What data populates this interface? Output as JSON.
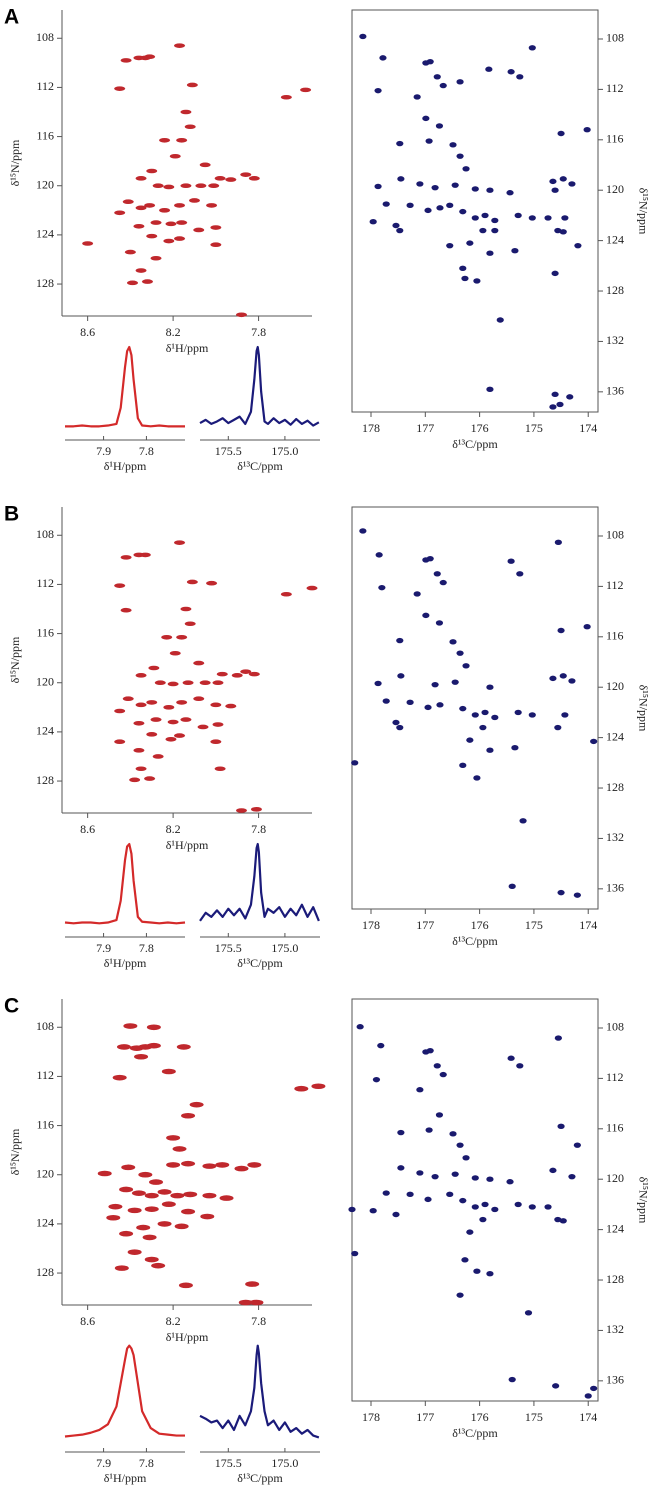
{
  "chart_data": [
    {
      "type": "scatter",
      "panel_label": "A",
      "xlabel": "δ¹H/ppm",
      "ylabel": "δ¹⁵N/ppm",
      "color": "#c0282d",
      "y_axis_side": "left",
      "xlim": [
        8.72,
        7.55
      ],
      "ylim": [
        130.6,
        105.7
      ],
      "xticks": [
        8.6,
        8.2,
        7.8
      ],
      "yticks": [
        108,
        112,
        116,
        120,
        124,
        128
      ],
      "x": [
        8.42,
        8.36,
        8.33,
        8.31,
        8.17,
        8.45,
        8.11,
        8.14,
        8.12,
        8.16,
        8.24,
        7.67,
        7.58,
        8.19,
        8.05,
        7.98,
        7.93,
        7.86,
        7.82,
        8.3,
        8.35,
        8.27,
        8.22,
        8.14,
        8.07,
        8.01,
        8.41,
        8.35,
        8.31,
        8.24,
        8.17,
        8.1,
        8.02,
        8.45,
        8.36,
        8.28,
        8.21,
        8.16,
        8.08,
        8.0,
        8.3,
        8.22,
        8.17,
        8.6,
        8.0,
        8.4,
        8.28,
        8.35,
        8.39,
        8.32,
        7.88
      ],
      "values": [
        109.8,
        109.6,
        109.6,
        109.5,
        108.6,
        112.1,
        111.8,
        114.0,
        115.2,
        116.3,
        116.3,
        112.8,
        112.2,
        117.6,
        118.3,
        119.4,
        119.5,
        119.1,
        119.4,
        118.8,
        119.4,
        120.0,
        120.1,
        120.0,
        120.0,
        120.0,
        121.3,
        121.8,
        121.6,
        122.0,
        121.6,
        121.2,
        121.6,
        122.2,
        123.3,
        123.0,
        123.1,
        123.0,
        123.6,
        123.4,
        124.1,
        124.5,
        124.3,
        124.7,
        124.8,
        125.4,
        125.9,
        126.9,
        127.9,
        127.8,
        130.5
      ]
    },
    {
      "type": "line",
      "xlabel": "δ¹H/ppm",
      "color": "#d42a2a",
      "xlim": [
        7.99,
        7.71
      ],
      "ylim": [
        -0.05,
        1.05
      ],
      "xticks": [
        7.9,
        7.8
      ],
      "x": [
        7.99,
        7.97,
        7.95,
        7.93,
        7.91,
        7.89,
        7.87,
        7.86,
        7.85,
        7.845,
        7.84,
        7.835,
        7.83,
        7.82,
        7.81,
        7.79,
        7.77,
        7.75,
        7.73,
        7.71
      ],
      "values": [
        0.02,
        0.02,
        0.03,
        0.02,
        0.02,
        0.03,
        0.05,
        0.25,
        0.75,
        0.95,
        1.0,
        0.9,
        0.6,
        0.12,
        0.03,
        0.02,
        0.03,
        0.02,
        0.02,
        0.02
      ]
    },
    {
      "type": "line",
      "xlabel": "δ¹³C/ppm",
      "color": "#1b1b7a",
      "xlim": [
        175.75,
        174.69
      ],
      "ylim": [
        -0.05,
        1.05
      ],
      "xticks": [
        175.5,
        {
          "value": 175,
          "label": "175.0"
        }
      ],
      "x": [
        175.75,
        175.7,
        175.65,
        175.6,
        175.55,
        175.5,
        175.45,
        175.4,
        175.35,
        175.3,
        175.27,
        175.25,
        175.24,
        175.23,
        175.21,
        175.18,
        175.15,
        175.1,
        175.05,
        175.0,
        174.95,
        174.9,
        174.85,
        174.8,
        174.75,
        174.7
      ],
      "values": [
        0.06,
        0.1,
        0.05,
        0.08,
        0.12,
        0.06,
        0.1,
        0.14,
        0.05,
        0.2,
        0.6,
        0.95,
        1.0,
        0.9,
        0.45,
        0.08,
        0.05,
        0.12,
        0.06,
        0.1,
        0.04,
        0.11,
        0.05,
        0.09,
        0.03,
        0.07
      ]
    },
    {
      "type": "scatter",
      "xlabel": "δ¹³C/ppm",
      "ylabel": "δ¹⁵N/ppm",
      "color": "#1a1a6e",
      "y_axis_side": "right",
      "xlim": [
        178.35,
        173.82
      ],
      "ylim": [
        137.6,
        105.7
      ],
      "xticks": [
        178,
        177,
        176,
        175,
        174
      ],
      "yticks": [
        108,
        112,
        116,
        120,
        124,
        128,
        132,
        136
      ],
      "x": [
        178.15,
        177.78,
        177.87,
        176.91,
        176.99,
        176.78,
        177.15,
        176.67,
        176.36,
        175.83,
        175.42,
        175.26,
        175.03,
        176.99,
        176.74,
        176.93,
        177.47,
        176.49,
        174.5,
        174.02,
        176.36,
        176.25,
        177.87,
        177.45,
        177.1,
        176.82,
        176.45,
        176.08,
        175.81,
        175.44,
        174.65,
        174.46,
        174.3,
        174.61,
        177.72,
        177.28,
        176.95,
        176.73,
        176.55,
        176.31,
        176.08,
        175.9,
        175.72,
        175.29,
        175.03,
        174.74,
        174.43,
        177.96,
        177.54,
        177.47,
        175.94,
        175.72,
        174.56,
        174.46,
        174.19,
        176.18,
        176.55,
        176.31,
        176.05,
        175.81,
        176.27,
        175.35,
        174.61,
        175.62,
        175.81,
        174.61,
        174.34,
        174.65,
        174.52
      ],
      "values": [
        107.8,
        109.5,
        112.1,
        109.8,
        109.9,
        111.0,
        112.6,
        111.7,
        111.4,
        110.4,
        110.6,
        111.0,
        108.7,
        114.3,
        114.9,
        116.1,
        116.3,
        116.4,
        115.5,
        115.2,
        117.3,
        118.3,
        119.7,
        119.1,
        119.5,
        119.8,
        119.6,
        119.9,
        120.0,
        120.2,
        119.3,
        119.1,
        119.5,
        120.0,
        121.1,
        121.2,
        121.6,
        121.4,
        121.2,
        121.7,
        122.2,
        122.0,
        122.4,
        122.0,
        122.2,
        122.2,
        122.2,
        122.5,
        122.8,
        123.2,
        123.2,
        123.2,
        123.2,
        123.3,
        124.4,
        124.2,
        124.4,
        126.2,
        127.2,
        125.0,
        127.0,
        124.8,
        126.6,
        130.3,
        135.8,
        136.2,
        136.4,
        137.2,
        137.0
      ]
    },
    {
      "type": "scatter",
      "panel_label": "B",
      "xlabel": "δ¹H/ppm",
      "ylabel": "δ¹⁵N/ppm",
      "color": "#c0282d",
      "y_axis_side": "left",
      "xlim": [
        8.72,
        7.55
      ],
      "ylim": [
        130.6,
        105.7
      ],
      "xticks": [
        8.6,
        8.2,
        7.8
      ],
      "yticks": [
        108,
        112,
        116,
        120,
        124,
        128
      ],
      "x": [
        8.42,
        8.36,
        8.33,
        8.17,
        8.45,
        8.11,
        8.02,
        8.42,
        8.14,
        8.12,
        8.23,
        8.16,
        7.67,
        7.55,
        8.19,
        8.08,
        7.97,
        7.9,
        7.86,
        7.82,
        8.29,
        8.35,
        8.26,
        8.2,
        8.13,
        8.05,
        7.99,
        8.41,
        8.35,
        8.3,
        8.22,
        8.16,
        8.08,
        8.0,
        7.93,
        8.45,
        8.36,
        8.28,
        8.2,
        8.14,
        8.06,
        7.99,
        8.3,
        8.21,
        8.17,
        8.45,
        8.0,
        8.36,
        8.27,
        8.35,
        8.38,
        8.31,
        7.98,
        7.88,
        7.81
      ],
      "values": [
        109.8,
        109.6,
        109.6,
        108.6,
        112.1,
        111.8,
        111.9,
        114.1,
        114.0,
        115.2,
        116.3,
        116.3,
        112.8,
        112.3,
        117.6,
        118.4,
        119.3,
        119.4,
        119.1,
        119.3,
        118.8,
        119.4,
        120.0,
        120.1,
        120.0,
        120.0,
        120.0,
        121.3,
        121.8,
        121.6,
        122.0,
        121.6,
        121.3,
        121.8,
        121.9,
        122.3,
        123.3,
        123.0,
        123.2,
        123.0,
        123.6,
        123.4,
        124.2,
        124.6,
        124.3,
        124.8,
        124.8,
        125.5,
        126.0,
        127.0,
        127.9,
        127.8,
        127.0,
        130.4,
        130.3
      ]
    },
    {
      "type": "line",
      "xlabel": "δ¹H/ppm",
      "color": "#d42a2a",
      "xlim": [
        7.99,
        7.71
      ],
      "ylim": [
        -0.05,
        1.05
      ],
      "xticks": [
        7.9,
        7.8
      ],
      "x": [
        7.99,
        7.97,
        7.95,
        7.93,
        7.91,
        7.89,
        7.87,
        7.86,
        7.85,
        7.845,
        7.84,
        7.835,
        7.83,
        7.82,
        7.81,
        7.79,
        7.77,
        7.75,
        7.73,
        7.71
      ],
      "values": [
        0.03,
        0.02,
        0.03,
        0.03,
        0.02,
        0.03,
        0.06,
        0.3,
        0.8,
        0.97,
        1.0,
        0.88,
        0.55,
        0.1,
        0.04,
        0.03,
        0.02,
        0.03,
        0.02,
        0.03
      ]
    },
    {
      "type": "line",
      "xlabel": "δ¹³C/ppm",
      "color": "#1b1b7a",
      "xlim": [
        175.75,
        174.69
      ],
      "ylim": [
        -0.05,
        1.05
      ],
      "xticks": [
        175.5,
        {
          "value": 175,
          "label": "175.0"
        }
      ],
      "x": [
        175.75,
        175.7,
        175.65,
        175.6,
        175.55,
        175.5,
        175.45,
        175.4,
        175.35,
        175.3,
        175.27,
        175.25,
        175.24,
        175.23,
        175.21,
        175.18,
        175.15,
        175.1,
        175.05,
        175.0,
        174.95,
        174.9,
        174.85,
        174.8,
        174.75,
        174.7
      ],
      "values": [
        0.05,
        0.15,
        0.1,
        0.18,
        0.1,
        0.2,
        0.12,
        0.2,
        0.08,
        0.25,
        0.6,
        0.95,
        1.0,
        0.9,
        0.4,
        0.1,
        0.2,
        0.15,
        0.22,
        0.1,
        0.2,
        0.12,
        0.25,
        0.1,
        0.22,
        0.05
      ]
    },
    {
      "type": "scatter",
      "xlabel": "δ¹³C/ppm",
      "ylabel": "δ¹⁵N/ppm",
      "color": "#1a1a6e",
      "y_axis_side": "right",
      "xlim": [
        178.35,
        173.82
      ],
      "ylim": [
        137.6,
        105.7
      ],
      "xticks": [
        178,
        177,
        176,
        175,
        174
      ],
      "yticks": [
        108,
        112,
        116,
        120,
        124,
        128,
        132,
        136
      ],
      "x": [
        178.15,
        177.85,
        177.8,
        176.91,
        176.99,
        176.78,
        177.15,
        176.67,
        175.42,
        174.55,
        175.26,
        176.99,
        176.74,
        177.47,
        176.49,
        174.5,
        174.02,
        176.36,
        176.25,
        177.87,
        177.45,
        176.82,
        176.45,
        175.81,
        174.65,
        174.46,
        174.3,
        177.72,
        177.28,
        176.95,
        176.73,
        176.31,
        176.08,
        175.9,
        175.72,
        175.29,
        175.03,
        174.43,
        177.54,
        177.47,
        175.94,
        174.56,
        173.9,
        176.18,
        176.31,
        176.05,
        175.81,
        175.35,
        178.3,
        175.2,
        175.4,
        174.5,
        174.2
      ],
      "values": [
        107.6,
        109.5,
        112.1,
        109.8,
        109.9,
        111.0,
        112.6,
        111.7,
        110.0,
        108.5,
        111.0,
        114.3,
        114.9,
        116.3,
        116.4,
        115.5,
        115.2,
        117.3,
        118.3,
        119.7,
        119.1,
        119.8,
        119.6,
        120.0,
        119.3,
        119.1,
        119.5,
        121.1,
        121.2,
        121.6,
        121.4,
        121.7,
        122.2,
        122.0,
        122.4,
        122.0,
        122.2,
        122.2,
        122.8,
        123.2,
        123.2,
        123.2,
        124.3,
        124.2,
        126.2,
        127.2,
        125.0,
        124.8,
        126.0,
        130.6,
        135.8,
        136.3,
        136.5
      ]
    },
    {
      "type": "scatter",
      "panel_label": "C",
      "xlabel": "δ¹H/ppm",
      "ylabel": "δ¹⁵N/ppm",
      "color": "#c0282d",
      "y_axis_side": "left",
      "xlim": [
        8.72,
        7.55
      ],
      "ylim": [
        130.6,
        105.7
      ],
      "xticks": [
        8.6,
        8.2,
        7.8
      ],
      "yticks": [
        108,
        112,
        116,
        120,
        124,
        128
      ],
      "x": [
        8.4,
        8.29,
        8.43,
        8.37,
        8.33,
        8.29,
        8.35,
        8.15,
        8.45,
        8.22,
        8.09,
        8.13,
        8.2,
        8.17,
        7.52,
        7.6,
        8.52,
        8.41,
        8.33,
        8.28,
        8.2,
        8.13,
        8.03,
        7.97,
        7.88,
        7.82,
        8.42,
        8.36,
        8.3,
        8.24,
        8.18,
        8.12,
        8.03,
        7.95,
        8.47,
        8.38,
        8.3,
        8.22,
        8.13,
        8.04,
        8.48,
        8.34,
        8.24,
        8.16,
        8.42,
        8.31,
        8.38,
        8.3,
        8.27,
        8.44,
        8.14,
        7.83,
        7.86,
        7.81
      ],
      "values": [
        107.9,
        108.0,
        109.6,
        109.7,
        109.6,
        109.5,
        110.4,
        109.6,
        112.1,
        111.6,
        114.3,
        115.2,
        117.0,
        117.9,
        112.8,
        113.0,
        119.9,
        119.4,
        120.0,
        120.6,
        119.2,
        119.1,
        119.3,
        119.2,
        119.5,
        119.2,
        121.2,
        121.5,
        121.7,
        121.4,
        121.7,
        121.6,
        121.7,
        121.9,
        122.6,
        122.9,
        122.8,
        122.4,
        123.0,
        123.4,
        123.5,
        124.3,
        124.0,
        124.2,
        124.8,
        125.1,
        126.3,
        126.9,
        127.4,
        127.6,
        129.0,
        128.9,
        130.4,
        130.4
      ]
    },
    {
      "type": "line",
      "xlabel": "δ¹H/ppm",
      "color": "#d42a2a",
      "xlim": [
        7.99,
        7.71
      ],
      "ylim": [
        -0.05,
        1.05
      ],
      "xticks": [
        7.9,
        7.8
      ],
      "x": [
        7.99,
        7.97,
        7.95,
        7.93,
        7.91,
        7.89,
        7.87,
        7.86,
        7.85,
        7.845,
        7.84,
        7.835,
        7.83,
        7.82,
        7.81,
        7.79,
        7.77,
        7.75,
        7.73,
        7.71
      ],
      "values": [
        0.03,
        0.04,
        0.05,
        0.07,
        0.1,
        0.16,
        0.35,
        0.6,
        0.85,
        0.97,
        1.0,
        0.97,
        0.9,
        0.6,
        0.3,
        0.12,
        0.06,
        0.05,
        0.04,
        0.04
      ]
    },
    {
      "type": "line",
      "xlabel": "δ¹³C/ppm",
      "color": "#1b1b7a",
      "xlim": [
        175.75,
        174.69
      ],
      "ylim": [
        -0.05,
        1.05
      ],
      "xticks": [
        175.5,
        {
          "value": 175,
          "label": "175.0"
        }
      ],
      "x": [
        175.75,
        175.7,
        175.65,
        175.6,
        175.55,
        175.5,
        175.45,
        175.4,
        175.35,
        175.3,
        175.27,
        175.25,
        175.24,
        175.23,
        175.21,
        175.18,
        175.15,
        175.1,
        175.05,
        175.0,
        174.95,
        174.9,
        174.85,
        174.8,
        174.75,
        174.7
      ],
      "values": [
        0.25,
        0.22,
        0.18,
        0.2,
        0.12,
        0.2,
        0.1,
        0.25,
        0.15,
        0.3,
        0.55,
        0.9,
        1.0,
        0.92,
        0.6,
        0.3,
        0.15,
        0.2,
        0.1,
        0.18,
        0.08,
        0.12,
        0.06,
        0.1,
        0.04,
        0.02
      ]
    },
    {
      "type": "scatter",
      "xlabel": "δ¹³C/ppm",
      "ylabel": "δ¹⁵N/ppm",
      "color": "#1a1a6e",
      "y_axis_side": "right",
      "xlim": [
        178.35,
        173.82
      ],
      "ylim": [
        137.6,
        105.7
      ],
      "xticks": [
        178,
        177,
        176,
        175,
        174
      ],
      "yticks": [
        108,
        112,
        116,
        120,
        124,
        128,
        132,
        136
      ],
      "x": [
        178.2,
        177.82,
        177.9,
        176.91,
        176.99,
        176.78,
        177.1,
        176.67,
        175.42,
        175.26,
        174.55,
        176.74,
        176.93,
        177.45,
        176.49,
        174.5,
        174.2,
        176.36,
        176.25,
        177.45,
        177.1,
        176.82,
        176.45,
        176.08,
        175.81,
        175.44,
        174.65,
        174.3,
        177.72,
        177.28,
        176.95,
        176.55,
        176.31,
        176.08,
        175.9,
        175.72,
        175.29,
        175.03,
        174.74,
        177.96,
        177.54,
        175.94,
        174.56,
        174.46,
        176.18,
        176.27,
        176.05,
        175.81,
        176.36,
        178.35,
        178.3,
        175.1,
        175.4,
        174.6,
        174.0,
        173.9
      ],
      "values": [
        107.9,
        109.4,
        112.1,
        109.8,
        109.9,
        111.0,
        112.9,
        111.7,
        110.4,
        111.0,
        108.8,
        114.9,
        116.1,
        116.3,
        116.4,
        115.8,
        117.3,
        117.3,
        118.3,
        119.1,
        119.5,
        119.8,
        119.6,
        119.9,
        120.0,
        120.2,
        119.3,
        119.8,
        121.1,
        121.2,
        121.6,
        121.2,
        121.7,
        122.2,
        122.0,
        122.4,
        122.0,
        122.2,
        122.2,
        122.5,
        122.8,
        123.2,
        123.2,
        123.3,
        124.2,
        126.4,
        127.3,
        127.5,
        129.2,
        122.4,
        125.9,
        130.6,
        135.9,
        136.4,
        137.2,
        136.6
      ]
    }
  ]
}
